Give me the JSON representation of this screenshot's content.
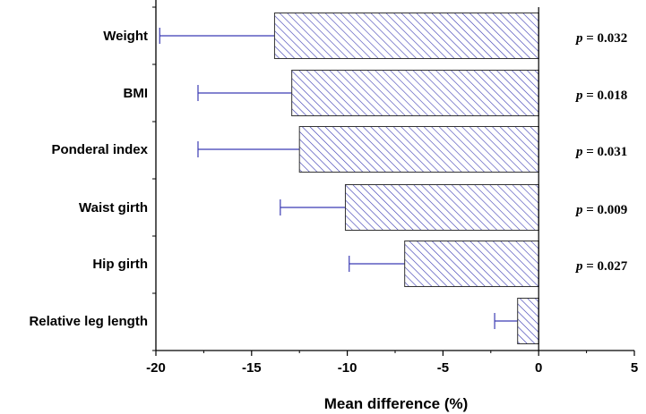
{
  "chart_data": {
    "type": "bar",
    "orientation": "horizontal",
    "categories": [
      "Weight",
      "BMI",
      "Ponderal index",
      "Waist girth",
      "Hip girth",
      "Relative leg length"
    ],
    "values": [
      -13.8,
      -12.9,
      -12.5,
      -10.1,
      -7.0,
      -1.1
    ],
    "error_low": [
      -19.8,
      -17.8,
      -17.8,
      -13.5,
      -9.9,
      -2.3
    ],
    "annotations": [
      "p = 0.032",
      "p = 0.018",
      "p = 0.031",
      "p = 0.009",
      "p = 0.027",
      ""
    ],
    "xlabel": "Mean difference (%)",
    "ylabel": "",
    "title": "",
    "xlim": [
      -20,
      5
    ],
    "xticks": [
      -20,
      -15,
      -10,
      -5,
      0,
      5
    ],
    "grid": false,
    "bar_fill": "hatched",
    "bar_color": "#3b3bb3",
    "errorbar_color": "#3b3bb3"
  }
}
